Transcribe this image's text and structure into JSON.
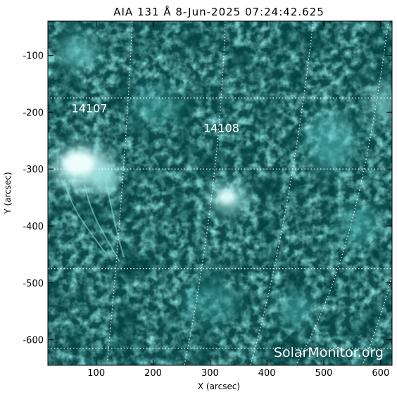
{
  "title": "AIA 131 Å  8-Jun-2025 07:24:42.625",
  "xlabel": "X (arcsec)",
  "ylabel": "Y (arcsec)",
  "xlim": [
    15,
    620
  ],
  "ylim": [
    -645,
    -40
  ],
  "xticks": [
    100,
    200,
    300,
    400,
    500,
    600
  ],
  "yticks": [
    -100,
    -200,
    -300,
    -400,
    -500,
    -600
  ],
  "grid_lat": [
    -175,
    -300,
    -475,
    -615
  ],
  "colors": {
    "sun_base": "#0d4b4c",
    "sun_bright": "#d8ffff",
    "grid": "#ffffff",
    "frame": "#000000"
  },
  "active_regions": [
    {
      "label": "14107",
      "x": 88,
      "y": -200
    },
    {
      "label": "14108",
      "x": 320,
      "y": -235
    }
  ],
  "watermark": "SolarMonitor.org"
}
